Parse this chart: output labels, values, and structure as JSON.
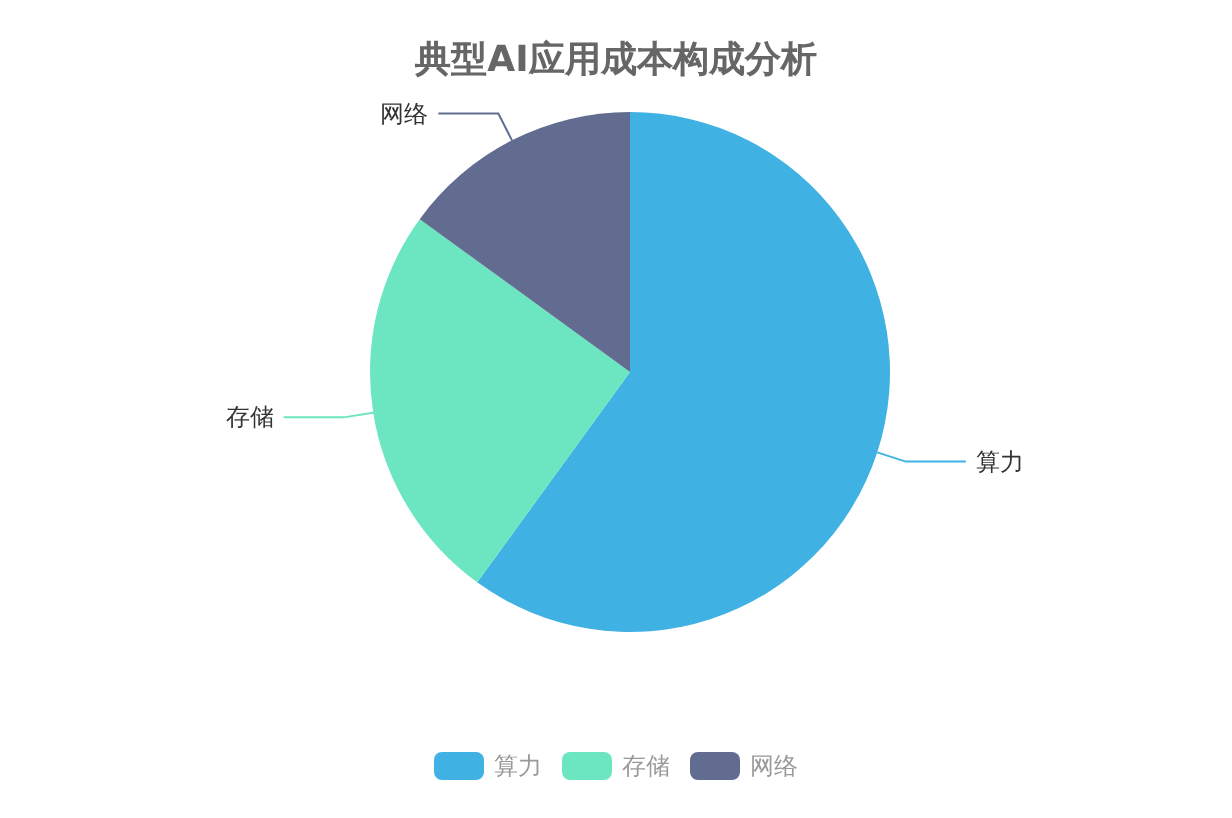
{
  "chart_data": {
    "type": "pie",
    "title": "典型AI应用成本构成分析",
    "categories": [
      "算力",
      "存储",
      "网络"
    ],
    "values": [
      60,
      25,
      15
    ],
    "colors": [
      "#3fb1e3",
      "#6be6c1",
      "#626c91"
    ],
    "legend": "bottom"
  }
}
